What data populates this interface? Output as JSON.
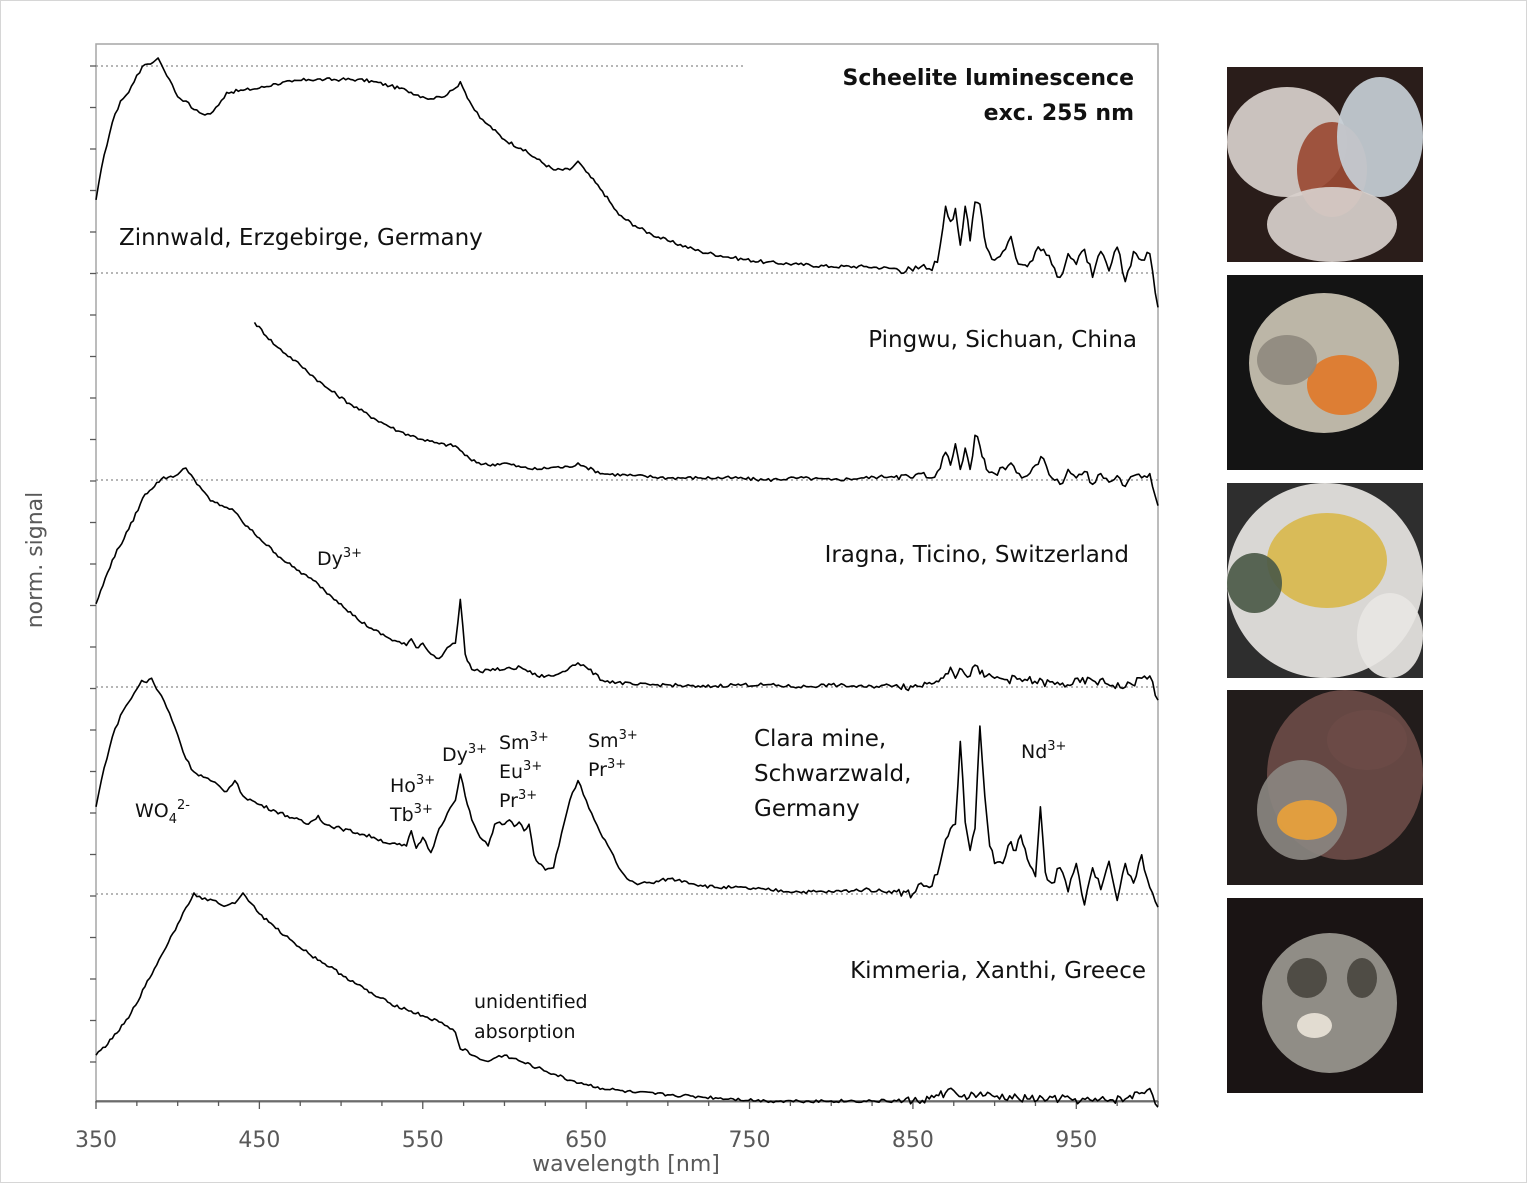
{
  "chart_data": {
    "type": "line",
    "title": "Scheelite luminescence",
    "subtitle": "exc. 255 nm",
    "xlabel": "wavelength [nm]",
    "ylabel": "norm. signal",
    "xlim": [
      350,
      1000
    ],
    "x_ticks": [
      "350",
      "450",
      "550",
      "650",
      "750",
      "850",
      "950"
    ],
    "grid": false,
    "series": [
      {
        "name": "Zinnwald, Erzgebirge, Germany",
        "x": [
          350,
          355,
          360,
          365,
          370,
          375,
          380,
          385,
          388,
          390,
          395,
          400,
          405,
          410,
          415,
          420,
          425,
          430,
          440,
          450,
          460,
          470,
          480,
          490,
          500,
          510,
          520,
          530,
          540,
          550,
          555,
          560,
          565,
          570,
          573,
          576,
          580,
          585,
          590,
          600,
          610,
          620,
          630,
          640,
          645,
          650,
          660,
          670,
          680,
          690,
          700,
          720,
          740,
          760,
          780,
          800,
          820,
          840,
          850,
          855,
          860,
          865,
          870,
          873,
          876,
          879,
          882,
          885,
          888,
          891,
          895,
          900,
          905,
          910,
          913,
          916,
          920,
          925,
          930,
          935,
          940,
          945,
          950,
          955,
          960,
          965,
          970,
          975,
          980,
          985,
          990,
          995,
          1000
        ],
        "values": [
          0.34,
          0.55,
          0.7,
          0.8,
          0.84,
          0.92,
          0.97,
          0.98,
          1.0,
          0.97,
          0.9,
          0.82,
          0.8,
          0.76,
          0.74,
          0.74,
          0.78,
          0.84,
          0.85,
          0.86,
          0.88,
          0.89,
          0.9,
          0.9,
          0.9,
          0.9,
          0.89,
          0.87,
          0.85,
          0.82,
          0.81,
          0.82,
          0.83,
          0.86,
          0.89,
          0.84,
          0.78,
          0.72,
          0.69,
          0.62,
          0.58,
          0.53,
          0.48,
          0.48,
          0.52,
          0.47,
          0.38,
          0.27,
          0.22,
          0.18,
          0.15,
          0.1,
          0.07,
          0.05,
          0.04,
          0.03,
          0.03,
          0.02,
          0.01,
          0.03,
          0.02,
          0.05,
          0.31,
          0.24,
          0.3,
          0.13,
          0.31,
          0.15,
          0.33,
          0.32,
          0.12,
          0.06,
          0.1,
          0.17,
          0.07,
          0.04,
          0.03,
          0.1,
          0.11,
          0.04,
          -0.02,
          0.09,
          0.04,
          0.11,
          -0.02,
          0.1,
          0.01,
          0.12,
          -0.04,
          0.1,
          0.06,
          0.09,
          -0.16
        ]
      },
      {
        "name": "Pingwu, Sichuan, China",
        "x": [
          447,
          460,
          475,
          490,
          505,
          520,
          535,
          550,
          560,
          570,
          580,
          590,
          600,
          610,
          620,
          630,
          640,
          645,
          650,
          660,
          680,
          700,
          720,
          740,
          760,
          780,
          800,
          820,
          840,
          850,
          855,
          860,
          865,
          870,
          873,
          876,
          879,
          882,
          885,
          888,
          891,
          895,
          900,
          905,
          910,
          915,
          920,
          925,
          930,
          935,
          940,
          945,
          950,
          955,
          960,
          965,
          970,
          975,
          980,
          985,
          990,
          995,
          1000
        ],
        "values": [
          0.74,
          0.63,
          0.54,
          0.44,
          0.36,
          0.29,
          0.23,
          0.19,
          0.17,
          0.16,
          0.09,
          0.07,
          0.08,
          0.06,
          0.05,
          0.06,
          0.06,
          0.08,
          0.06,
          0.03,
          0.02,
          0.01,
          0.01,
          0.01,
          0.0,
          0.01,
          0.0,
          0.01,
          0.02,
          0.01,
          0.03,
          0.01,
          0.04,
          0.13,
          0.07,
          0.17,
          0.05,
          0.15,
          0.05,
          0.21,
          0.16,
          0.05,
          0.03,
          0.06,
          0.08,
          0.03,
          0.02,
          0.07,
          0.1,
          0.01,
          -0.02,
          0.05,
          0.01,
          0.04,
          -0.02,
          0.03,
          -0.01,
          0.02,
          -0.03,
          0.02,
          0.01,
          0.03,
          -0.12
        ]
      },
      {
        "name": "Iragna, Ticino, Switzerland",
        "x": [
          350,
          360,
          370,
          380,
          390,
          400,
          405,
          410,
          415,
          420,
          430,
          435,
          440,
          450,
          460,
          470,
          480,
          486,
          490,
          500,
          510,
          520,
          530,
          540,
          543,
          546,
          550,
          555,
          560,
          565,
          570,
          573,
          576,
          580,
          585,
          590,
          600,
          610,
          620,
          630,
          640,
          645,
          650,
          660,
          680,
          700,
          720,
          740,
          760,
          780,
          800,
          820,
          840,
          850,
          860,
          870,
          873,
          876,
          880,
          885,
          888,
          891,
          895,
          900,
          920,
          940,
          960,
          980,
          990,
          995,
          1000
        ],
        "values": [
          0.38,
          0.58,
          0.72,
          0.88,
          0.95,
          0.97,
          1.0,
          0.95,
          0.9,
          0.85,
          0.82,
          0.8,
          0.75,
          0.68,
          0.61,
          0.55,
          0.5,
          0.47,
          0.44,
          0.38,
          0.31,
          0.26,
          0.22,
          0.19,
          0.22,
          0.18,
          0.2,
          0.15,
          0.13,
          0.18,
          0.2,
          0.4,
          0.15,
          0.08,
          0.07,
          0.08,
          0.08,
          0.09,
          0.05,
          0.05,
          0.09,
          0.11,
          0.09,
          0.03,
          0.01,
          0.01,
          0.0,
          0.01,
          0.01,
          0.0,
          0.01,
          0.0,
          0.01,
          0.0,
          0.02,
          0.06,
          0.09,
          0.04,
          0.08,
          0.05,
          0.1,
          0.06,
          0.05,
          0.04,
          0.03,
          0.01,
          0.03,
          0.0,
          0.04,
          0.05,
          -0.06
        ]
      },
      {
        "name": "Clara mine, Schwarzwald, Germany",
        "x": [
          350,
          355,
          360,
          365,
          370,
          375,
          378,
          381,
          384,
          387,
          390,
          395,
          400,
          405,
          410,
          420,
          430,
          435,
          440,
          450,
          460,
          470,
          480,
          486,
          490,
          500,
          510,
          520,
          530,
          540,
          543,
          546,
          550,
          555,
          560,
          565,
          570,
          573,
          576,
          580,
          585,
          590,
          594,
          597,
          600,
          603,
          606,
          609,
          612,
          615,
          618,
          621,
          625,
          630,
          635,
          640,
          645,
          650,
          655,
          660,
          665,
          670,
          675,
          680,
          690,
          700,
          710,
          720,
          730,
          740,
          760,
          780,
          800,
          820,
          840,
          850,
          855,
          860,
          865,
          870,
          873,
          876,
          879,
          882,
          885,
          888,
          891,
          894,
          897,
          900,
          905,
          910,
          913,
          916,
          920,
          925,
          928,
          931,
          935,
          940,
          945,
          950,
          955,
          960,
          965,
          970,
          975,
          980,
          985,
          990,
          995,
          1000
        ],
        "values": [
          0.4,
          0.58,
          0.72,
          0.82,
          0.88,
          0.94,
          0.98,
          0.97,
          0.99,
          0.94,
          0.91,
          0.83,
          0.73,
          0.62,
          0.56,
          0.52,
          0.47,
          0.52,
          0.45,
          0.41,
          0.38,
          0.35,
          0.32,
          0.36,
          0.32,
          0.3,
          0.28,
          0.26,
          0.23,
          0.22,
          0.29,
          0.21,
          0.26,
          0.19,
          0.3,
          0.37,
          0.43,
          0.55,
          0.45,
          0.34,
          0.26,
          0.22,
          0.32,
          0.33,
          0.32,
          0.34,
          0.31,
          0.33,
          0.29,
          0.32,
          0.18,
          0.14,
          0.11,
          0.12,
          0.28,
          0.43,
          0.52,
          0.43,
          0.34,
          0.26,
          0.2,
          0.12,
          0.07,
          0.05,
          0.05,
          0.07,
          0.06,
          0.04,
          0.03,
          0.03,
          0.02,
          0.01,
          0.01,
          0.02,
          0.01,
          0.0,
          0.05,
          0.03,
          0.09,
          0.25,
          0.3,
          0.32,
          0.7,
          0.33,
          0.2,
          0.3,
          0.77,
          0.45,
          0.22,
          0.14,
          0.14,
          0.24,
          0.2,
          0.27,
          0.16,
          0.08,
          0.4,
          0.1,
          0.05,
          0.12,
          0.01,
          0.14,
          -0.05,
          0.12,
          0.02,
          0.15,
          -0.03,
          0.14,
          0.05,
          0.18,
          0.03,
          -0.06
        ]
      },
      {
        "name": "Kimmeria, Xanthi, Greece",
        "x": [
          350,
          360,
          370,
          380,
          390,
          400,
          405,
          410,
          415,
          420,
          425,
          430,
          435,
          440,
          445,
          450,
          460,
          470,
          480,
          490,
          500,
          510,
          520,
          530,
          540,
          550,
          560,
          565,
          570,
          573,
          576,
          580,
          585,
          590,
          595,
          600,
          610,
          620,
          630,
          640,
          650,
          660,
          680,
          700,
          720,
          740,
          760,
          780,
          800,
          820,
          840,
          850,
          860,
          870,
          875,
          880,
          890,
          900,
          920,
          940,
          960,
          980,
          990,
          995,
          1000
        ],
        "values": [
          0.22,
          0.3,
          0.4,
          0.55,
          0.7,
          0.85,
          0.93,
          1.0,
          0.97,
          0.97,
          0.95,
          0.94,
          0.95,
          1.0,
          0.95,
          0.9,
          0.83,
          0.77,
          0.71,
          0.66,
          0.61,
          0.56,
          0.51,
          0.47,
          0.44,
          0.41,
          0.38,
          0.36,
          0.33,
          0.25,
          0.25,
          0.22,
          0.2,
          0.19,
          0.21,
          0.22,
          0.19,
          0.16,
          0.13,
          0.1,
          0.08,
          0.06,
          0.04,
          0.03,
          0.02,
          0.01,
          0.0,
          0.0,
          0.0,
          0.0,
          0.0,
          0.0,
          0.01,
          0.04,
          0.05,
          0.02,
          0.03,
          0.02,
          0.01,
          0.01,
          0.0,
          0.01,
          0.04,
          0.06,
          -0.03
        ]
      }
    ],
    "annotations": [
      {
        "text": "Dy",
        "sup": "3+"
      },
      {
        "text": "WO",
        "sub": "4",
        "sup": "2-"
      },
      {
        "line1": "Ho",
        "line1_sup": "3+",
        "line2": "Tb",
        "line2_sup": "3+"
      },
      {
        "text": "Dy",
        "sup": "3+"
      },
      {
        "line1": "Sm",
        "line1_sup": "3+",
        "line2": "Eu",
        "line2_sup": "3+",
        "line3": "Pr",
        "line3_sup": "3+"
      },
      {
        "line1": "Sm",
        "line1_sup": "3+",
        "line2": "Pr",
        "line2_sup": "3+"
      },
      {
        "text": "Nd",
        "sup": "3+"
      },
      {
        "line1": "unidentified",
        "line2": "absorption"
      }
    ]
  },
  "labels": {
    "clara_line1": "Clara mine,",
    "clara_line2": "Schwarzwald,",
    "clara_line3": "Germany"
  },
  "photos": [
    {
      "alt": "Zinnwald specimen",
      "colors": [
        "#2a1d1a",
        "#d8d0cc",
        "#9a4a33",
        "#c7cfd6"
      ]
    },
    {
      "alt": "Pingwu specimen",
      "colors": [
        "#141414",
        "#cbc4b4",
        "#e07a2a",
        "#8f8a7f"
      ]
    },
    {
      "alt": "Iragna specimen",
      "colors": [
        "#2e2e2e",
        "#e8e6e3",
        "#d9b84d",
        "#4c5a48"
      ]
    },
    {
      "alt": "Clara mine specimen",
      "colors": [
        "#221c1b",
        "#6b4b46",
        "#e8a13a",
        "#8a8580"
      ]
    },
    {
      "alt": "Kimmeria specimen",
      "colors": [
        "#1a1414",
        "#9a9890",
        "#e9e3d8",
        "#4a4640"
      ]
    }
  ]
}
